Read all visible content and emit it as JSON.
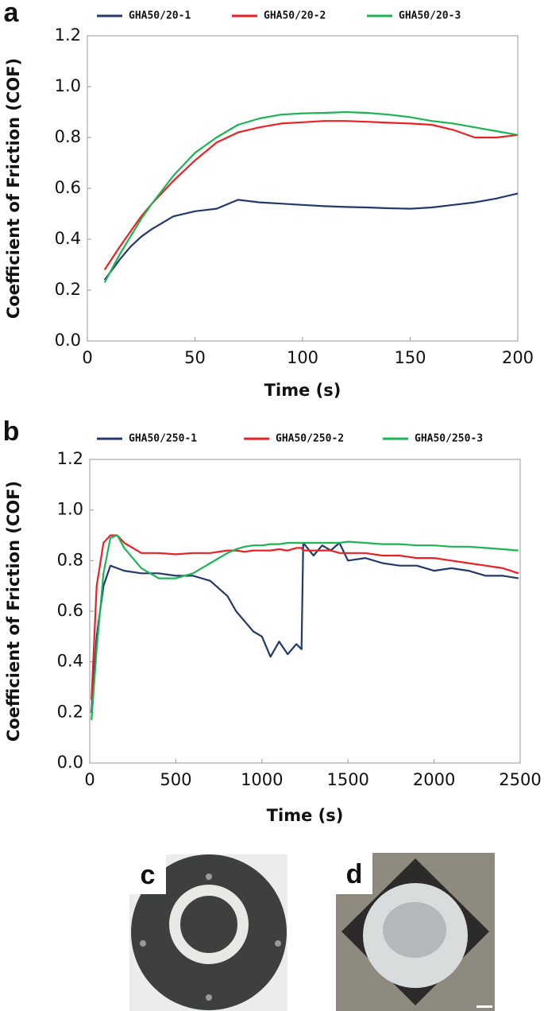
{
  "chart_data": [
    {
      "type": "line",
      "label": "a",
      "x_label": "Time (s)",
      "y_label": "Coefficient of Friction (COF)",
      "xlim": [
        0,
        200
      ],
      "xticks": [
        0,
        50,
        100,
        150,
        200
      ],
      "ylim": [
        0,
        1.2
      ],
      "yticks": [
        {
          "value": 0,
          "label": "0.0"
        },
        0.2,
        0.4,
        0.6,
        0.8,
        {
          "value": 1,
          "label": "1.0"
        },
        1.2
      ],
      "x": [
        8,
        15,
        20,
        25,
        30,
        40,
        50,
        60,
        70,
        80,
        90,
        100,
        110,
        120,
        130,
        140,
        150,
        160,
        170,
        180,
        190,
        200
      ],
      "series": [
        {
          "name": "GHA50/20-1",
          "color": "#23396b",
          "values": [
            0.24,
            0.32,
            0.37,
            0.41,
            0.44,
            0.49,
            0.51,
            0.52,
            0.555,
            0.545,
            0.54,
            0.535,
            0.53,
            0.527,
            0.525,
            0.522,
            0.52,
            0.525,
            0.535,
            0.545,
            0.56,
            0.58
          ]
        },
        {
          "name": "GHA50/20-2",
          "color": "#ec2024",
          "values": [
            0.28,
            0.37,
            0.43,
            0.49,
            0.54,
            0.63,
            0.71,
            0.78,
            0.82,
            0.84,
            0.855,
            0.86,
            0.865,
            0.865,
            0.862,
            0.858,
            0.855,
            0.85,
            0.83,
            0.8,
            0.8,
            0.81
          ]
        },
        {
          "name": "GHA50/20-3",
          "color": "#1db455",
          "values": [
            0.23,
            0.34,
            0.41,
            0.48,
            0.54,
            0.65,
            0.74,
            0.8,
            0.85,
            0.875,
            0.89,
            0.895,
            0.897,
            0.9,
            0.897,
            0.89,
            0.88,
            0.865,
            0.855,
            0.84,
            0.825,
            0.81
          ]
        }
      ]
    },
    {
      "type": "line",
      "label": "b",
      "x_label": "Time (s)",
      "y_label": "Coefficient of Friction (COF)",
      "xlim": [
        0,
        2500
      ],
      "xticks": [
        0,
        500,
        1000,
        1500,
        2000,
        2500
      ],
      "ylim": [
        0,
        1.2
      ],
      "yticks": [
        {
          "value": 0,
          "label": "0.0"
        },
        0.2,
        0.4,
        0.6,
        0.8,
        {
          "value": 1,
          "label": "1.0"
        },
        1.2
      ],
      "x": [
        10,
        40,
        80,
        120,
        160,
        200,
        300,
        400,
        500,
        600,
        700,
        800,
        850,
        900,
        950,
        1000,
        1050,
        1100,
        1150,
        1200,
        1230,
        1240,
        1300,
        1350,
        1400,
        1450,
        1500,
        1600,
        1700,
        1800,
        1900,
        2000,
        2100,
        2200,
        2300,
        2400,
        2490
      ],
      "series": [
        {
          "name": "GHA50/250-1",
          "color": "#23396b",
          "values": [
            0.2,
            0.5,
            0.7,
            0.78,
            0.77,
            0.76,
            0.75,
            0.75,
            0.74,
            0.74,
            0.72,
            0.66,
            0.6,
            0.56,
            0.52,
            0.5,
            0.42,
            0.48,
            0.43,
            0.47,
            0.45,
            0.87,
            0.82,
            0.86,
            0.84,
            0.87,
            0.8,
            0.81,
            0.79,
            0.78,
            0.78,
            0.76,
            0.77,
            0.76,
            0.74,
            0.74,
            0.73
          ]
        },
        {
          "name": "GHA50/250-2",
          "color": "#ec2024",
          "values": [
            0.25,
            0.7,
            0.87,
            0.9,
            0.9,
            0.87,
            0.83,
            0.83,
            0.825,
            0.83,
            0.83,
            0.84,
            0.84,
            0.835,
            0.84,
            0.84,
            0.84,
            0.845,
            0.84,
            0.85,
            0.85,
            0.84,
            0.84,
            0.84,
            0.84,
            0.83,
            0.83,
            0.83,
            0.82,
            0.82,
            0.81,
            0.81,
            0.8,
            0.79,
            0.78,
            0.77,
            0.75
          ]
        },
        {
          "name": "GHA50/250-3",
          "color": "#1db455",
          "values": [
            0.17,
            0.45,
            0.75,
            0.89,
            0.9,
            0.85,
            0.77,
            0.73,
            0.73,
            0.75,
            0.79,
            0.83,
            0.845,
            0.855,
            0.86,
            0.86,
            0.865,
            0.865,
            0.87,
            0.87,
            0.87,
            0.87,
            0.87,
            0.87,
            0.87,
            0.87,
            0.875,
            0.87,
            0.865,
            0.865,
            0.86,
            0.86,
            0.855,
            0.855,
            0.85,
            0.845,
            0.84
          ]
        }
      ]
    }
  ],
  "photos": [
    {
      "label": "c"
    },
    {
      "label": "d"
    }
  ]
}
